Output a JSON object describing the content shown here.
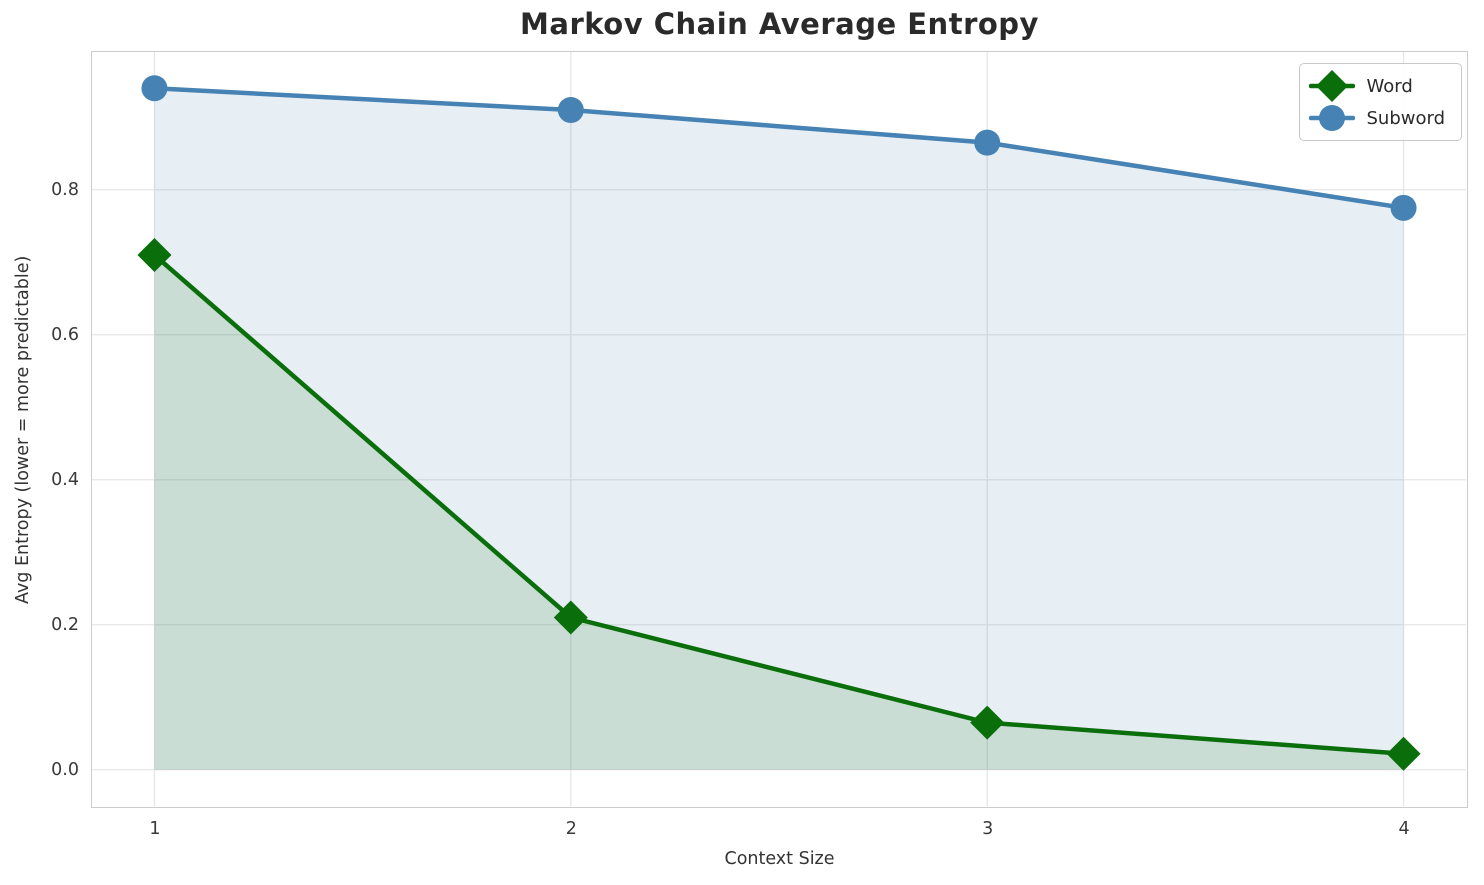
{
  "chart_data": {
    "type": "line",
    "title": "Markov Chain Average Entropy",
    "xlabel": "Context Size",
    "ylabel": "Avg Entropy (lower = more predictable)",
    "x": [
      1,
      2,
      3,
      4
    ],
    "xtick_labels": [
      "1",
      "2",
      "3",
      "4"
    ],
    "yticks": [
      0.0,
      0.2,
      0.4,
      0.6,
      0.8
    ],
    "ytick_labels": [
      "0.0",
      "0.2",
      "0.4",
      "0.6",
      "0.8"
    ],
    "xlim": [
      0.85,
      4.15
    ],
    "ylim": [
      -0.05,
      0.99
    ],
    "grid": true,
    "grid_color": "#e6e6e6",
    "spine_color": "#cccccc",
    "background_color": "#ffffff",
    "legend_position": "upper right",
    "fill_baseline": 0,
    "series": [
      {
        "name": "Word",
        "marker": "diamond",
        "color": "#0a6e0a",
        "fill_color": "rgba(0, 100, 0, 0.13)",
        "values": [
          0.71,
          0.21,
          0.065,
          0.022
        ]
      },
      {
        "name": "Subword",
        "marker": "circle",
        "color": "#4682b4",
        "fill_color": "rgba(70, 130, 180, 0.13)",
        "values": [
          0.94,
          0.91,
          0.865,
          0.775
        ]
      }
    ]
  }
}
